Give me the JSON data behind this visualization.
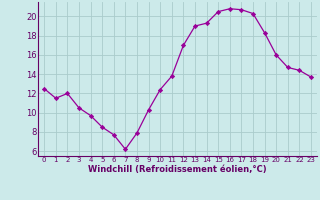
{
  "x": [
    0,
    1,
    2,
    3,
    4,
    5,
    6,
    7,
    8,
    9,
    10,
    11,
    12,
    13,
    14,
    15,
    16,
    17,
    18,
    19,
    20,
    21,
    22,
    23
  ],
  "y": [
    12.5,
    11.5,
    12.0,
    10.5,
    9.7,
    8.5,
    7.7,
    6.2,
    7.9,
    10.3,
    12.4,
    13.8,
    17.0,
    19.0,
    19.3,
    20.5,
    20.8,
    20.7,
    20.3,
    18.3,
    16.0,
    14.7,
    14.4,
    13.7
  ],
  "line_color": "#990099",
  "marker": "D",
  "marker_size": 2.2,
  "bg_color": "#cceaea",
  "grid_color": "#aacccc",
  "xlabel": "Windchill (Refroidissement éolien,°C)",
  "xlabel_color": "#660066",
  "tick_color": "#660066",
  "ylim": [
    5.5,
    21.5
  ],
  "xlim": [
    -0.5,
    23.5
  ],
  "yticks": [
    6,
    8,
    10,
    12,
    14,
    16,
    18,
    20
  ],
  "xticks": [
    0,
    1,
    2,
    3,
    4,
    5,
    6,
    7,
    8,
    9,
    10,
    11,
    12,
    13,
    14,
    15,
    16,
    17,
    18,
    19,
    20,
    21,
    22,
    23
  ],
  "xtick_labels": [
    "0",
    "1",
    "2",
    "3",
    "4",
    "5",
    "6",
    "7",
    "8",
    "9",
    "10",
    "11",
    "12",
    "13",
    "14",
    "15",
    "16",
    "17",
    "18",
    "19",
    "20",
    "21",
    "22",
    "23"
  ]
}
